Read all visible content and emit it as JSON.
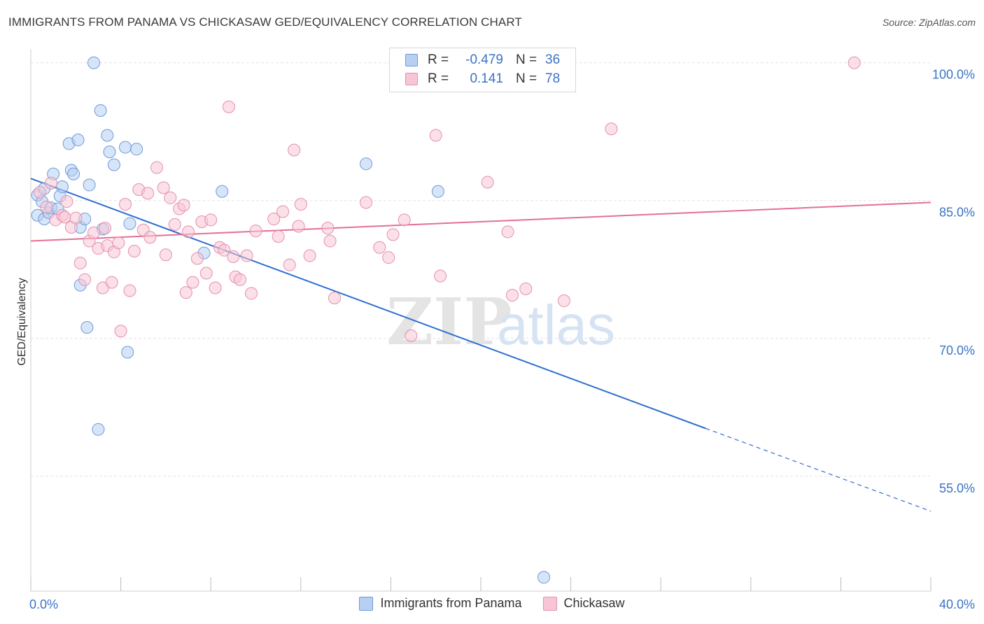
{
  "title": "IMMIGRANTS FROM PANAMA VS CHICKASAW GED/EQUIVALENCY CORRELATION CHART",
  "source": "Source: ZipAtlas.com",
  "watermark": {
    "zip": "ZIP",
    "atlas": "atlas"
  },
  "colors": {
    "blue": "#3a73c6",
    "blue_fill": "#b7d0f2",
    "blue_line": "#2f6fd1",
    "pink": "#e06e96",
    "pink_fill": "#f7c6d6",
    "pink_line": "#e46f97",
    "grid": "#e3e3e3",
    "axis_label": "#3a73c6"
  },
  "legend": {
    "rows": [
      {
        "r_label": "R =",
        "r_value": "-0.479",
        "n_label": "N =",
        "n_value": "36"
      },
      {
        "r_label": "R =",
        "r_value": "0.141",
        "n_label": "N =",
        "n_value": "78"
      }
    ]
  },
  "bottom_legend": [
    "Immigrants from Panama",
    "Chickasaw"
  ],
  "chart_data": {
    "type": "scatter",
    "ylabel": "GED/Equivalency",
    "xlabel": "",
    "x_tick_labels": [
      "0.0%",
      "40.0%"
    ],
    "y_tick_labels": [
      "100.0%",
      "85.0%",
      "70.0%",
      "55.0%"
    ],
    "xlim": [
      0,
      40
    ],
    "ylim": [
      42.5,
      101.5
    ],
    "y_ticks": [
      100,
      85,
      70,
      55
    ],
    "grid": true,
    "legend_position": "top-center",
    "series": [
      {
        "name": "Immigrants from Panama",
        "points": [
          [
            0.3,
            85.6
          ],
          [
            0.3,
            83.4
          ],
          [
            0.5,
            84.9
          ],
          [
            0.6,
            83.0
          ],
          [
            0.8,
            83.7
          ],
          [
            0.9,
            84.2
          ],
          [
            1.0,
            87.9
          ],
          [
            1.3,
            85.5
          ],
          [
            1.4,
            86.5
          ],
          [
            1.7,
            91.2
          ],
          [
            1.8,
            88.3
          ],
          [
            1.9,
            87.9
          ],
          [
            2.1,
            91.6
          ],
          [
            2.2,
            82.1
          ],
          [
            2.4,
            83.0
          ],
          [
            2.5,
            71.2
          ],
          [
            2.6,
            86.7
          ],
          [
            2.8,
            100.0
          ],
          [
            3.0,
            60.1
          ],
          [
            3.1,
            94.8
          ],
          [
            3.2,
            81.9
          ],
          [
            3.4,
            92.1
          ],
          [
            3.5,
            90.3
          ],
          [
            3.7,
            88.9
          ],
          [
            4.2,
            90.8
          ],
          [
            4.3,
            68.5
          ],
          [
            4.4,
            82.5
          ],
          [
            4.7,
            90.6
          ],
          [
            7.7,
            79.3
          ],
          [
            8.5,
            86.0
          ],
          [
            14.9,
            89.0
          ],
          [
            18.1,
            86.0
          ],
          [
            22.8,
            44.0
          ],
          [
            2.2,
            75.8
          ],
          [
            0.6,
            86.3
          ],
          [
            1.2,
            84.1
          ]
        ]
      },
      {
        "name": "Chickasaw",
        "points": [
          [
            0.4,
            85.9
          ],
          [
            0.7,
            84.3
          ],
          [
            0.9,
            86.9
          ],
          [
            1.1,
            82.9
          ],
          [
            1.4,
            83.4
          ],
          [
            1.6,
            84.9
          ],
          [
            1.8,
            82.1
          ],
          [
            2.0,
            83.1
          ],
          [
            2.2,
            78.2
          ],
          [
            2.4,
            76.4
          ],
          [
            2.6,
            80.6
          ],
          [
            2.8,
            81.5
          ],
          [
            3.0,
            79.8
          ],
          [
            3.2,
            75.5
          ],
          [
            3.4,
            80.1
          ],
          [
            3.6,
            76.1
          ],
          [
            3.7,
            79.4
          ],
          [
            3.9,
            80.4
          ],
          [
            4.0,
            70.8
          ],
          [
            4.2,
            84.6
          ],
          [
            4.4,
            75.2
          ],
          [
            4.6,
            79.5
          ],
          [
            4.8,
            86.2
          ],
          [
            5.0,
            81.8
          ],
          [
            5.2,
            85.8
          ],
          [
            5.3,
            81.0
          ],
          [
            5.6,
            88.6
          ],
          [
            5.9,
            86.4
          ],
          [
            6.0,
            79.1
          ],
          [
            6.2,
            85.3
          ],
          [
            6.4,
            82.4
          ],
          [
            6.6,
            84.1
          ],
          [
            6.8,
            84.5
          ],
          [
            7.0,
            81.6
          ],
          [
            7.2,
            76.1
          ],
          [
            7.4,
            78.7
          ],
          [
            7.6,
            82.7
          ],
          [
            7.8,
            77.1
          ],
          [
            8.0,
            82.9
          ],
          [
            8.2,
            75.5
          ],
          [
            8.4,
            79.9
          ],
          [
            8.6,
            79.6
          ],
          [
            8.8,
            95.2
          ],
          [
            9.0,
            78.9
          ],
          [
            9.1,
            76.7
          ],
          [
            9.3,
            76.4
          ],
          [
            9.6,
            79.0
          ],
          [
            9.8,
            74.9
          ],
          [
            10.0,
            81.7
          ],
          [
            10.8,
            83.0
          ],
          [
            11.0,
            81.1
          ],
          [
            11.2,
            83.8
          ],
          [
            11.5,
            78.0
          ],
          [
            11.7,
            90.5
          ],
          [
            11.9,
            82.2
          ],
          [
            12.0,
            84.6
          ],
          [
            12.4,
            79.0
          ],
          [
            13.2,
            82.0
          ],
          [
            13.3,
            80.6
          ],
          [
            13.5,
            74.4
          ],
          [
            14.9,
            84.8
          ],
          [
            15.5,
            79.9
          ],
          [
            15.9,
            78.8
          ],
          [
            16.1,
            81.3
          ],
          [
            16.6,
            82.9
          ],
          [
            16.9,
            70.3
          ],
          [
            18.0,
            92.1
          ],
          [
            18.2,
            76.8
          ],
          [
            20.3,
            87.0
          ],
          [
            21.2,
            81.6
          ],
          [
            21.4,
            74.7
          ],
          [
            22.0,
            75.4
          ],
          [
            23.7,
            74.1
          ],
          [
            25.8,
            92.8
          ],
          [
            36.6,
            100.0
          ],
          [
            1.5,
            83.2
          ],
          [
            3.3,
            82.0
          ],
          [
            6.9,
            75.0
          ]
        ]
      }
    ],
    "trendlines": [
      {
        "series": "Immigrants from Panama",
        "x_start": 0,
        "y_start": 87.4,
        "x_solid_end": 30.0,
        "y_solid_end": 60.2,
        "x_end": 40.0,
        "y_end": 51.2
      },
      {
        "series": "Chickasaw",
        "x_start": 0,
        "y_start": 80.6,
        "x_end": 40.0,
        "y_end": 84.8
      }
    ]
  }
}
